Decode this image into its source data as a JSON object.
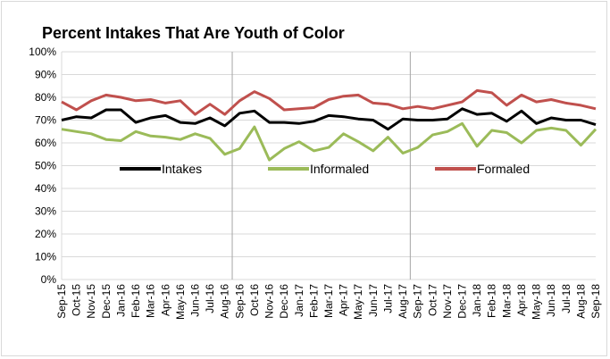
{
  "chart_data": {
    "type": "line",
    "title": "Percent Intakes That Are Youth of Color",
    "xlabel": "",
    "ylabel": "",
    "ylim": [
      0,
      100
    ],
    "y_ticks": [
      "0%",
      "10%",
      "20%",
      "30%",
      "40%",
      "50%",
      "60%",
      "70%",
      "80%",
      "90%",
      "100%"
    ],
    "grid": "horizontal",
    "vertical_markers": [
      "Aug-16",
      "Aug-17"
    ],
    "legend_position": "inside-middle",
    "categories": [
      "Sep-15",
      "Oct-15",
      "Nov-15",
      "Dec-15",
      "Jan-16",
      "Feb-16",
      "Mar-16",
      "Apr-16",
      "May-16",
      "Jun-16",
      "Jul-16",
      "Aug-16",
      "Sep-16",
      "Oct-16",
      "Nov-16",
      "Dec-16",
      "Jan-17",
      "Feb-17",
      "Mar-17",
      "Apr-17",
      "May-17",
      "Jun-17",
      "Jul-17",
      "Aug-17",
      "Sep-17",
      "Oct-17",
      "Nov-17",
      "Dec-17",
      "Jan-18",
      "Feb-18",
      "Mar-18",
      "Apr-18",
      "May-18",
      "Jun-18",
      "Jul-18",
      "Aug-18",
      "Sep-18"
    ],
    "series": [
      {
        "name": "Intakes",
        "color": "#000000",
        "values": [
          70,
          71.5,
          71,
          74.5,
          74.5,
          69,
          71,
          72,
          69,
          68.5,
          71,
          67.5,
          73,
          74,
          69,
          69,
          68.5,
          69.5,
          72,
          71.5,
          70.5,
          70,
          66,
          70.5,
          70,
          70,
          70.5,
          75,
          72.5,
          73,
          69.5,
          74,
          68.5,
          71,
          70,
          70,
          68
        ]
      },
      {
        "name": "Informaled",
        "color": "#9bbb59",
        "values": [
          66,
          65,
          64,
          61.5,
          61,
          65,
          63,
          62.5,
          61.5,
          64,
          62,
          55,
          57.5,
          67,
          52.5,
          57.5,
          60.5,
          56.5,
          58,
          64,
          60.5,
          56.5,
          62.5,
          55.5,
          58,
          63.5,
          65,
          68.5,
          58.5,
          65.5,
          64.5,
          60,
          65.5,
          66.5,
          65.5,
          59,
          66
        ]
      },
      {
        "name": "Formaled",
        "color": "#c0504d",
        "values": [
          78,
          74.5,
          78.5,
          81,
          80,
          78.5,
          79,
          77.5,
          78.5,
          72.5,
          77,
          72.5,
          78.5,
          82.5,
          79.5,
          74.5,
          75,
          75.5,
          79,
          80.5,
          81,
          77.5,
          77,
          75,
          76,
          75,
          76.5,
          78,
          83,
          82,
          76.5,
          81,
          78,
          79,
          77.5,
          76.5,
          75
        ]
      }
    ]
  }
}
